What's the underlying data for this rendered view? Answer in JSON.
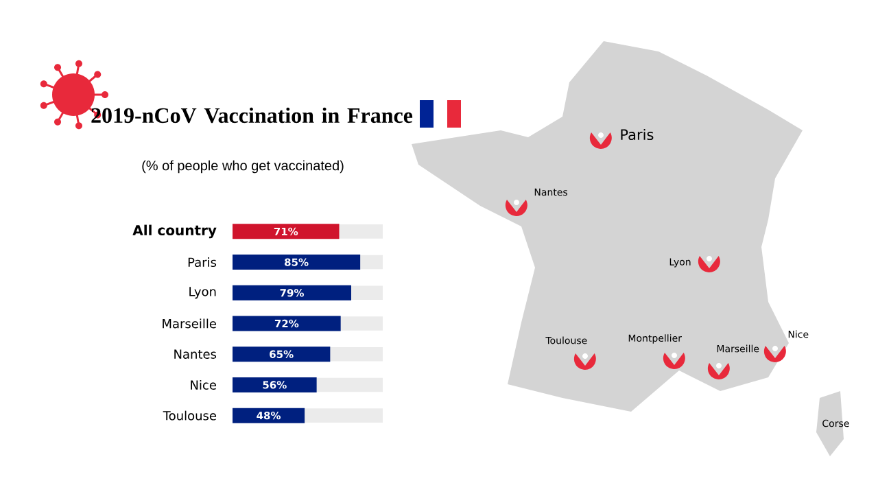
{
  "chart_data": {
    "type": "bar",
    "orientation": "horizontal",
    "title": "2019-nCoV Vaccination in France",
    "subtitle": "(% of people who get vaccinated)",
    "categories": [
      "All country",
      "Paris",
      "Lyon",
      "Marseille",
      "Nantes",
      "Nice",
      "Toulouse"
    ],
    "values": [
      71,
      85,
      79,
      72,
      65,
      56,
      48
    ],
    "colors": [
      "#d0142c",
      "#00207f",
      "#00207f",
      "#00207f",
      "#00207f",
      "#00207f",
      "#00207f"
    ],
    "value_labels": [
      "71%",
      "85%",
      "79%",
      "72%",
      "65%",
      "56%",
      "48%"
    ],
    "xlim": [
      0,
      100
    ],
    "tick_labels": "y",
    "annotations": [
      "Paris",
      "Nantes",
      "Lyon",
      "Toulouse",
      "Montpellier",
      "Marseille",
      "Nice",
      "Corse"
    ]
  }
}
